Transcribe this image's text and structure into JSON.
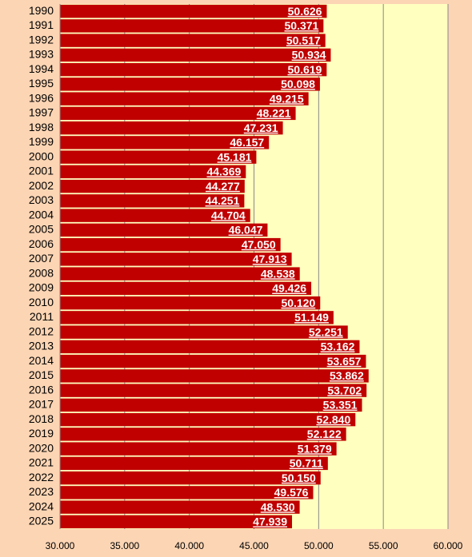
{
  "chart_data": {
    "type": "bar",
    "orientation": "horizontal",
    "color": "#c00000",
    "categories": [
      "1990",
      "1991",
      "1992",
      "1993",
      "1994",
      "1995",
      "1996",
      "1997",
      "1998",
      "1999",
      "2000",
      "2001",
      "2002",
      "2003",
      "2004",
      "2005",
      "2006",
      "2007",
      "2008",
      "2009",
      "2010",
      "2011",
      "2012",
      "2013",
      "2014",
      "2015",
      "2016",
      "2017",
      "2018",
      "2019",
      "2020",
      "2021",
      "2022",
      "2023",
      "2024",
      "2025"
    ],
    "values": [
      50.626,
      50.371,
      50.517,
      50.934,
      50.619,
      50.098,
      49.215,
      48.221,
      47.231,
      46.157,
      45.181,
      44.369,
      44.277,
      44.251,
      44.704,
      46.047,
      47.05,
      47.913,
      48.538,
      49.426,
      50.12,
      51.149,
      52.251,
      53.162,
      53.657,
      53.862,
      53.702,
      53.351,
      52.84,
      52.122,
      51.379,
      50.711,
      50.15,
      49.576,
      48.53,
      47.939
    ],
    "value_labels": [
      "50.626",
      "50.371",
      "50.517",
      "50.934",
      "50.619",
      "50.098",
      "49.215",
      "48.221",
      "47.231",
      "46.157",
      "45.181",
      "44.369",
      "44.277",
      "44.251",
      "44.704",
      "46.047",
      "47.050",
      "47.913",
      "48.538",
      "49.426",
      "50.120",
      "51.149",
      "52.251",
      "53.162",
      "53.657",
      "53.862",
      "53.702",
      "53.351",
      "52.840",
      "52.122",
      "51.379",
      "50.711",
      "50.150",
      "49.576",
      "48.530",
      "47.939"
    ],
    "xlim": [
      30,
      60
    ],
    "xticks": [
      {
        "value": 30,
        "label": "30.000"
      },
      {
        "value": 35,
        "label": "35.000"
      },
      {
        "value": 40,
        "label": "40.000"
      },
      {
        "value": 45,
        "label": "45.000"
      },
      {
        "value": 50,
        "label": "50.000"
      },
      {
        "value": 55,
        "label": "55.000"
      },
      {
        "value": 60,
        "label": "60.000"
      }
    ],
    "grid": true
  }
}
